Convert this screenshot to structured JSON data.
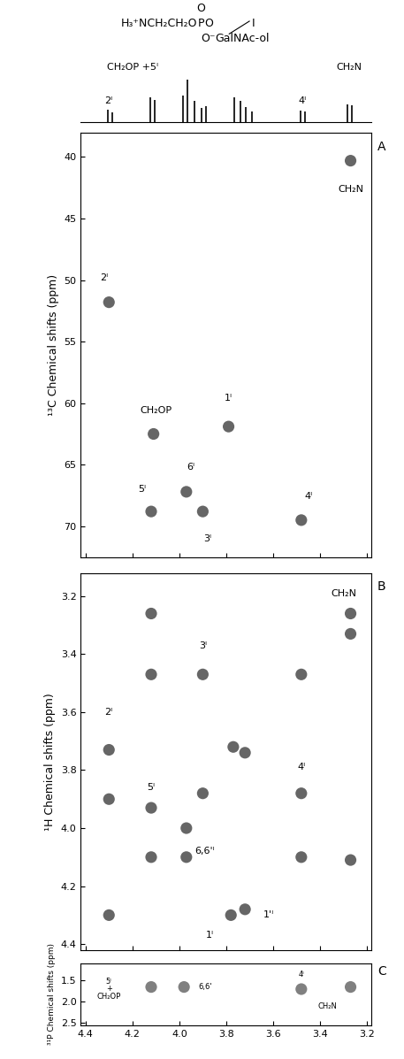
{
  "structure": {
    "chain": "H₃⁺NCH₂CH₂O",
    "P": "P",
    "O_right": "O",
    "O_top": "O",
    "O_bottom": "O⁻",
    "residue_mark": "I",
    "residue": "GalNAc-ol"
  },
  "chart_data": [
    {
      "type": "spectrum",
      "tick_labels": false,
      "xlim": [
        4.42,
        3.18
      ],
      "ylim": [
        0,
        1.45
      ],
      "x": [
        4.305,
        4.285,
        4.125,
        4.105,
        3.985,
        3.965,
        3.935,
        3.905,
        3.885,
        3.765,
        3.74,
        3.715,
        3.69,
        3.485,
        3.465,
        3.285,
        3.265
      ],
      "values": [
        0.28,
        0.22,
        0.58,
        0.52,
        0.62,
        1.0,
        0.5,
        0.32,
        0.36,
        0.58,
        0.5,
        0.34,
        0.24,
        0.27,
        0.25,
        0.42,
        0.38
      ],
      "color": "#000000",
      "annotations": [
        {
          "text": "CH₂OP +5ᴵ",
          "x": 4.2,
          "y": 1.28
        },
        {
          "text": "2ᴵ",
          "x": 4.3,
          "y": 0.5
        },
        {
          "text": "4ᴵ",
          "x": 3.475,
          "y": 0.5
        },
        {
          "text": "CH₂N",
          "x": 3.275,
          "y": 1.28
        }
      ]
    },
    {
      "type": "scatter",
      "panel_label": "A",
      "tick_labels": "y",
      "marker": "o",
      "color": "#333333",
      "ylabel": "¹³C Chemical shifts (ppm)",
      "xlim": [
        4.42,
        3.18
      ],
      "ylim": [
        72.5,
        38
      ],
      "xticks": [
        4.4,
        4.2,
        {
          "value": 4,
          "label": "4.0"
        },
        3.8,
        3.6,
        3.4,
        3.2
      ],
      "yticks": [
        40,
        45,
        50,
        55,
        60,
        65,
        70
      ],
      "x": [
        4.3,
        3.27,
        4.11,
        3.79,
        3.97,
        4.12,
        3.9,
        3.48
      ],
      "y": [
        51.8,
        40.3,
        62.5,
        61.9,
        67.2,
        68.8,
        68.8,
        69.5
      ],
      "annotations": [
        {
          "text": "2ᴵ",
          "x": 4.32,
          "y": 49.8
        },
        {
          "text": "CH₂N",
          "x": 3.27,
          "y": 42.6
        },
        {
          "text": "CH₂OP",
          "x": 4.1,
          "y": 60.6
        },
        {
          "text": "1ᴵ",
          "x": 3.79,
          "y": 59.6
        },
        {
          "text": "6ᴵ",
          "x": 3.95,
          "y": 65.2
        },
        {
          "text": "5ᴵ",
          "x": 4.16,
          "y": 67.0
        },
        {
          "text": "3ᴵ",
          "x": 3.88,
          "y": 71.0
        },
        {
          "text": "4ᴵ",
          "x": 3.45,
          "y": 67.6
        }
      ]
    },
    {
      "type": "scatter",
      "panel_label": "B",
      "tick_labels": "y",
      "marker": "o",
      "color": "#333333",
      "ylabel": "¹H Chemical shifts (ppm)",
      "xlim": [
        4.42,
        3.18
      ],
      "ylim": [
        4.42,
        3.12
      ],
      "xticks": [
        4.4,
        4.2,
        {
          "value": 4,
          "label": "4.0"
        },
        3.8,
        3.6,
        3.4,
        3.2
      ],
      "yticks": [
        3.2,
        3.4,
        3.6,
        3.8,
        {
          "value": 4,
          "label": "4.0"
        },
        4.2,
        4.4
      ],
      "x": [
        4.3,
        4.3,
        4.3,
        4.12,
        4.12,
        4.12,
        4.12,
        3.97,
        3.97,
        3.9,
        3.9,
        3.77,
        3.72,
        3.78,
        3.72,
        3.48,
        3.48,
        3.48,
        3.27,
        3.27,
        3.27
      ],
      "y": [
        3.73,
        3.9,
        4.3,
        3.26,
        3.47,
        3.93,
        4.1,
        4.0,
        4.1,
        3.47,
        3.88,
        3.72,
        3.74,
        4.3,
        4.28,
        3.47,
        3.88,
        4.1,
        3.26,
        3.33,
        4.11
      ],
      "annotations": [
        {
          "text": "2ᴵ",
          "x": 4.3,
          "y": 3.6
        },
        {
          "text": "3ᴵ",
          "x": 3.9,
          "y": 3.37
        },
        {
          "text": "5ᴵ",
          "x": 4.12,
          "y": 3.86
        },
        {
          "text": "4ᴵ",
          "x": 3.48,
          "y": 3.79
        },
        {
          "text": "6,6'ᴵ",
          "x": 3.89,
          "y": 4.08
        },
        {
          "text": "1ᴵ",
          "x": 3.87,
          "y": 4.37
        },
        {
          "text": "1'ᴵ",
          "x": 3.62,
          "y": 4.3
        },
        {
          "text": "CH₂N",
          "x": 3.3,
          "y": 3.19
        }
      ]
    },
    {
      "type": "scatter",
      "panel_label": "C",
      "marker": "o",
      "color": "#555555",
      "ylabel": "³¹P Chemical shifts (ppm)",
      "xlim": [
        4.42,
        3.18
      ],
      "ylim": [
        2.55,
        1.1
      ],
      "xticks": [
        4.4,
        4.2,
        {
          "value": 4,
          "label": "4.0"
        },
        3.8,
        3.6,
        3.4,
        3.2
      ],
      "yticks": [
        1.5,
        {
          "value": 2,
          "label": "2.0"
        },
        2.5
      ],
      "x": [
        4.12,
        3.98,
        3.48,
        3.27
      ],
      "y": [
        1.65,
        1.65,
        1.7,
        1.65
      ],
      "annotations": [
        {
          "text": "5ᴵ\n+\nCH₂OP",
          "x": 4.3,
          "y": 1.7
        },
        {
          "text": "6,6'",
          "x": 3.89,
          "y": 1.65
        },
        {
          "text": "4ᴵ",
          "x": 3.48,
          "y": 1.35
        },
        {
          "text": "CH₂N",
          "x": 3.37,
          "y": 2.1
        }
      ]
    }
  ]
}
